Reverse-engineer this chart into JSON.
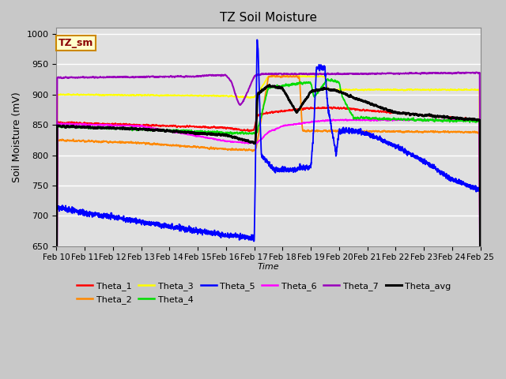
{
  "title": "TZ Soil Moisture",
  "xlabel": "Time",
  "ylabel": "Soil Moisture (mV)",
  "ylim": [
    650,
    1010
  ],
  "yticks": [
    650,
    700,
    750,
    800,
    850,
    900,
    950,
    1000
  ],
  "fig_bg": "#c8c8c8",
  "plot_bg": "#e0e0e0",
  "legend_label": "TZ_sm",
  "series_colors": {
    "Theta_1": "#ff0000",
    "Theta_2": "#ff8800",
    "Theta_3": "#ffff00",
    "Theta_4": "#00dd00",
    "Theta_5": "#0000ff",
    "Theta_6": "#ff00ff",
    "Theta_7": "#9900bb",
    "Theta_avg": "#000000"
  },
  "xtick_labels": [
    "Feb 10",
    "Feb 11",
    "Feb 12",
    "Feb 13",
    "Feb 14",
    "Feb 15",
    "Feb 16",
    "Feb 17",
    "Feb 18",
    "Feb 19",
    "Feb 20",
    "Feb 21",
    "Feb 22",
    "Feb 23",
    "Feb 24",
    "Feb 25"
  ]
}
